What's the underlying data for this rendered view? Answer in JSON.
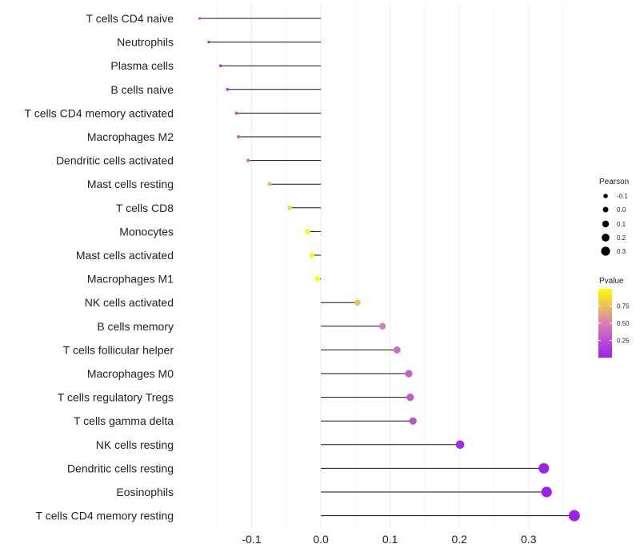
{
  "chart_data": {
    "type": "lollipop",
    "title": "",
    "xlabel": "",
    "ylabel": "",
    "xlim": [
      -0.2,
      0.38
    ],
    "x_ticks": [
      -0.1,
      0.0,
      0.1,
      0.2,
      0.3
    ],
    "x_tick_labels": [
      "-0.1",
      "0.0",
      "0.1",
      "0.2",
      "0.3"
    ],
    "grid": true,
    "categories": [
      "T cells CD4 naive",
      "Neutrophils",
      "Plasma cells",
      "B cells naive",
      "T cells CD4 memory activated",
      "Macrophages M2",
      "Dendritic cells activated",
      "Mast cells resting",
      "T cells CD8",
      "Monocytes",
      "Mast cells activated",
      "Macrophages M1",
      "NK cells activated",
      "B cells memory",
      "T cells follicular helper",
      "Macrophages M0",
      "T cells regulatory  Tregs ",
      "T cells gamma delta",
      "NK cells resting",
      "Dendritic cells resting",
      "Eosinophils",
      "T cells CD4 memory resting"
    ],
    "pearson": [
      -0.175,
      -0.162,
      -0.145,
      -0.135,
      -0.122,
      -0.119,
      -0.105,
      -0.074,
      -0.045,
      -0.019,
      -0.013,
      -0.005,
      0.053,
      0.089,
      0.11,
      0.127,
      0.129,
      0.133,
      0.201,
      0.322,
      0.326,
      0.366
    ],
    "pvalue": [
      0.04,
      0.06,
      0.12,
      0.18,
      0.3,
      0.33,
      0.42,
      0.72,
      0.85,
      0.96,
      0.97,
      0.99,
      0.75,
      0.5,
      0.4,
      0.32,
      0.3,
      0.28,
      0.05,
      0.0001,
      0.0001,
      1e-05
    ],
    "legend": {
      "size_title": "Pearson",
      "size_values": [
        -0.1,
        0.0,
        0.1,
        0.2,
        0.3
      ],
      "size_labels": [
        "-0.1",
        "0.0",
        "0.1",
        "0.2",
        "0.3"
      ],
      "color_title": "Pvalue",
      "color_ticks": [
        0.25,
        0.5,
        0.75
      ],
      "color_tick_labels": [
        "0.25",
        "0.50",
        "0.75"
      ],
      "color_range": [
        0.0,
        1.0
      ],
      "color_low": "#a020f0",
      "color_mid": "#d77fb3",
      "color_high": "#ffff00",
      "placement": "right"
    }
  }
}
